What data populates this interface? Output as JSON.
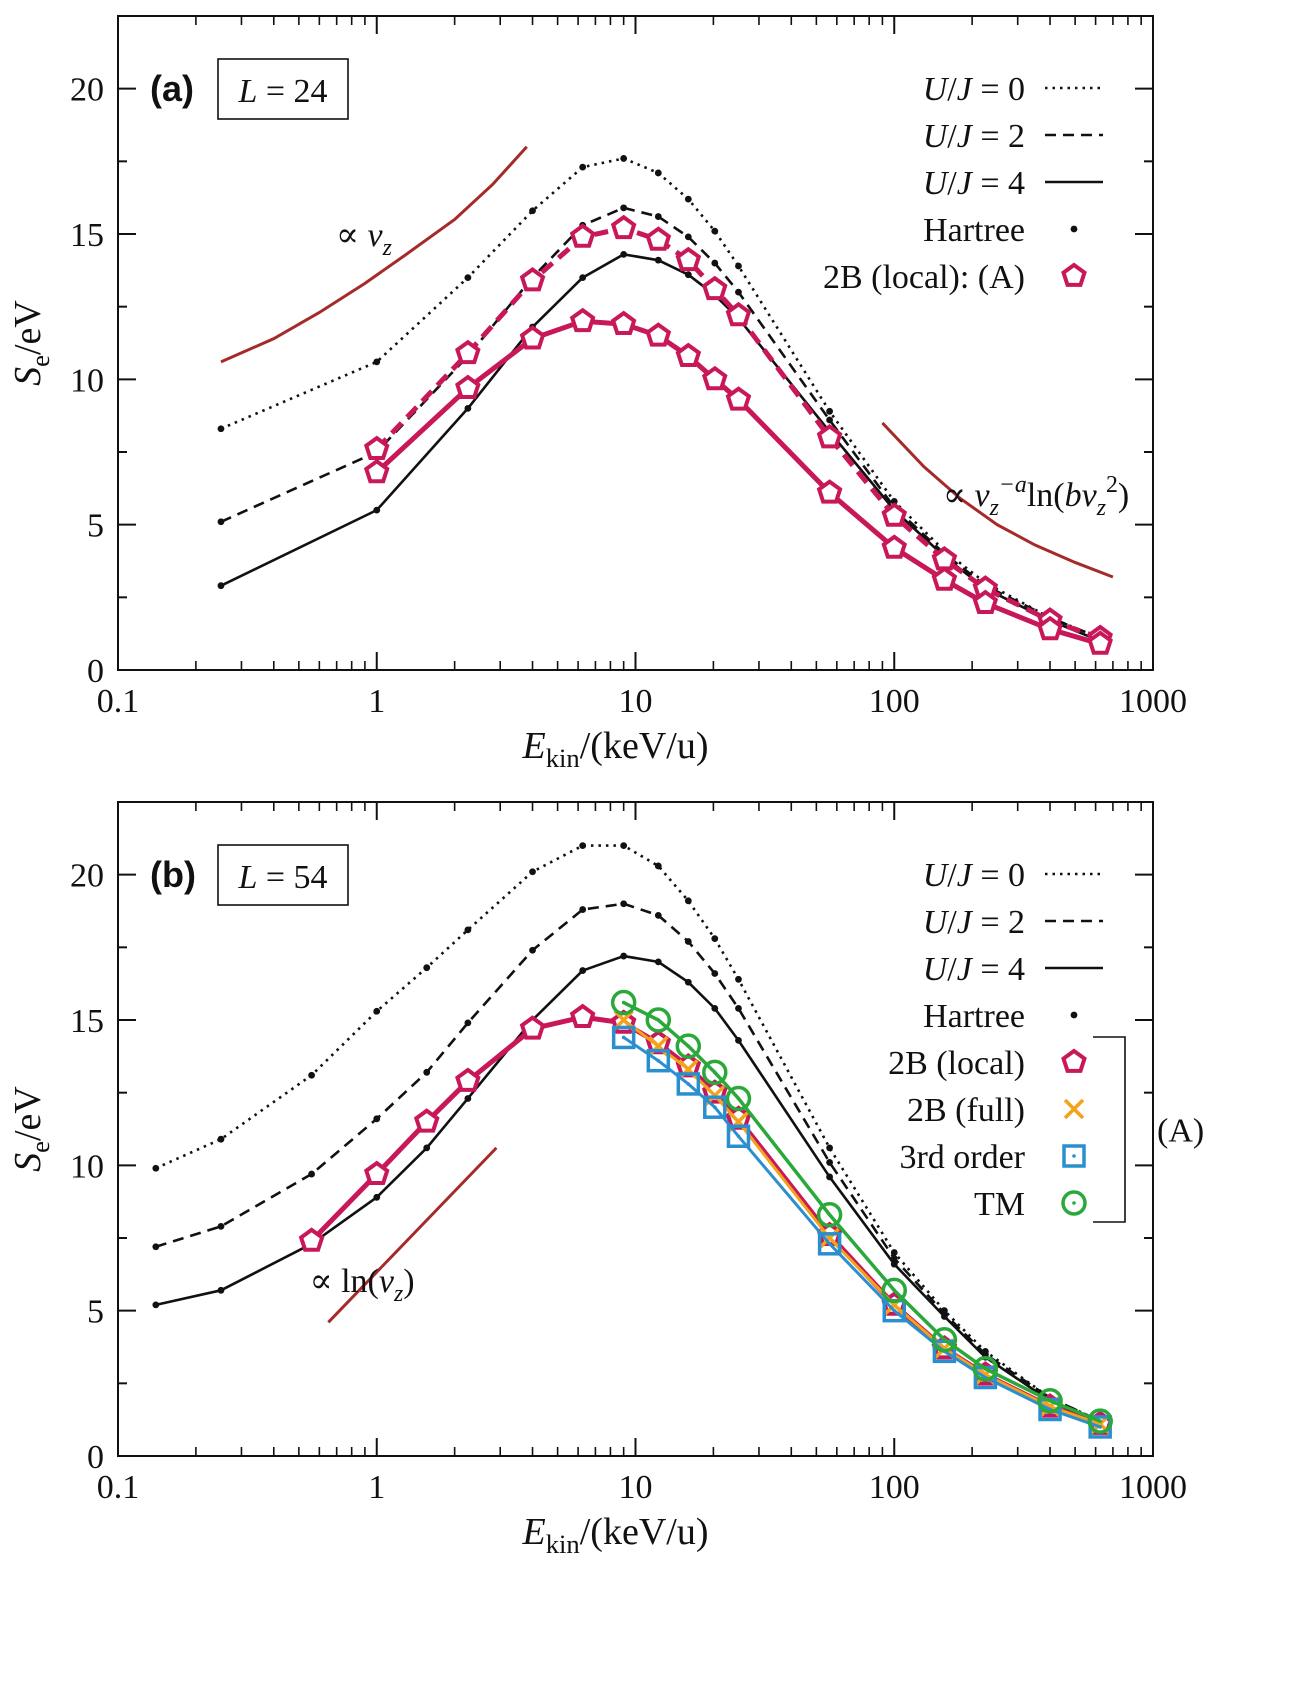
{
  "chart_data": [
    {
      "type": "line",
      "panel": "a",
      "panel_label": "(a)",
      "box_label": "L = 24",
      "xlabel": "E_kin/(keV/u)",
      "ylabel": "S_e/eV",
      "xscale": "log",
      "xlim": [
        0.1,
        1000
      ],
      "ylim": [
        0,
        22.5
      ],
      "xticks": [
        "0.1",
        "1",
        "10",
        "100",
        "1000"
      ],
      "yticks": [
        "0",
        "5",
        "10",
        "15",
        "20"
      ],
      "legend": [
        {
          "label": "U/J = 0",
          "style": "dotted"
        },
        {
          "label": "U/J = 2",
          "style": "dashed"
        },
        {
          "label": "U/J = 4",
          "style": "solid"
        },
        {
          "label": "Hartree",
          "style": "dot"
        },
        {
          "label": "2B (local): (A)",
          "style": "pentagon"
        }
      ],
      "annotations": {
        "low": "∝ v_z",
        "high": "∝ v_z^−a ln(b v_z^2)"
      },
      "series": [
        {
          "name": "Hartree U/J=0",
          "style": "dotted",
          "x": [
            0.25,
            1.0,
            2.25,
            4.0,
            6.25,
            9.0,
            12.25,
            16.0,
            20.25,
            25.0,
            56.25,
            100,
            156.25,
            225,
            400,
            625
          ],
          "y": [
            8.3,
            10.6,
            13.5,
            15.8,
            17.3,
            17.6,
            17.1,
            16.2,
            15.1,
            13.9,
            8.9,
            5.8,
            4.1,
            3.0,
            1.8,
            1.1
          ]
        },
        {
          "name": "Hartree U/J=2",
          "style": "dashed",
          "x": [
            0.25,
            1.0,
            2.25,
            4.0,
            6.25,
            9.0,
            12.25,
            16.0,
            20.25,
            25.0,
            56.25,
            100,
            156.25,
            225,
            400,
            625
          ],
          "y": [
            5.1,
            7.5,
            10.8,
            13.5,
            15.3,
            15.9,
            15.6,
            14.9,
            14.0,
            13.0,
            8.6,
            5.6,
            4.0,
            2.9,
            1.8,
            1.1
          ]
        },
        {
          "name": "Hartree U/J=4",
          "style": "solid",
          "x": [
            0.25,
            1.0,
            2.25,
            4.0,
            6.25,
            9.0,
            12.25,
            16.0,
            20.25,
            25.0,
            56.25,
            100,
            156.25,
            225,
            400,
            625
          ],
          "y": [
            2.9,
            5.5,
            9.0,
            11.8,
            13.5,
            14.3,
            14.1,
            13.6,
            12.9,
            12.1,
            8.2,
            5.5,
            3.9,
            2.8,
            1.7,
            1.0
          ]
        },
        {
          "name": "2B (local) U/J=2",
          "style": "dashed-pentagon",
          "x": [
            1.0,
            2.25,
            4.0,
            6.25,
            9.0,
            12.25,
            16.0,
            20.25,
            25.0,
            56.25,
            100,
            156.25,
            225,
            400,
            625
          ],
          "y": [
            7.6,
            10.9,
            13.4,
            14.9,
            15.2,
            14.8,
            14.1,
            13.1,
            12.2,
            8.0,
            5.3,
            3.8,
            2.8,
            1.7,
            1.1
          ]
        },
        {
          "name": "2B (local) U/J=4",
          "style": "solid-pentagon",
          "x": [
            1.0,
            2.25,
            4.0,
            6.25,
            9.0,
            12.25,
            16.0,
            20.25,
            25.0,
            56.25,
            100,
            156.25,
            225,
            400,
            625
          ],
          "y": [
            6.8,
            9.7,
            11.4,
            12.0,
            11.9,
            11.5,
            10.8,
            10.0,
            9.3,
            6.1,
            4.2,
            3.1,
            2.3,
            1.4,
            0.9
          ]
        }
      ],
      "guides": [
        {
          "name": "low-energy guide",
          "x": [
            0.25,
            0.4,
            0.6,
            0.9,
            1.3,
            2.0,
            2.8,
            3.8
          ],
          "y": [
            10.6,
            11.4,
            12.3,
            13.3,
            14.3,
            15.5,
            16.7,
            18.0
          ]
        },
        {
          "name": "high-energy guide",
          "x": [
            90,
            130,
            180,
            250,
            350,
            500,
            700
          ],
          "y": [
            8.5,
            7.0,
            5.9,
            5.0,
            4.3,
            3.7,
            3.2
          ]
        }
      ]
    },
    {
      "type": "line",
      "panel": "b",
      "panel_label": "(b)",
      "box_label": "L = 54",
      "xlabel": "E_kin/(keV/u)",
      "ylabel": "S_e/eV",
      "xscale": "log",
      "xlim": [
        0.1,
        1000
      ],
      "ylim": [
        0,
        22.5
      ],
      "xticks": [
        "0.1",
        "1",
        "10",
        "100",
        "1000"
      ],
      "yticks": [
        "0",
        "5",
        "10",
        "15",
        "20"
      ],
      "legend": [
        {
          "label": "U/J = 0",
          "style": "dotted"
        },
        {
          "label": "U/J = 2",
          "style": "dashed"
        },
        {
          "label": "U/J = 4",
          "style": "solid"
        },
        {
          "label": "Hartree",
          "style": "dot"
        },
        {
          "label": "2B (local)",
          "style": "pentagon"
        },
        {
          "label": "2B (full)",
          "style": "cross"
        },
        {
          "label": "3rd order",
          "style": "square"
        },
        {
          "label": "TM",
          "style": "circle"
        }
      ],
      "bracket_label": "(A)",
      "annotations": {
        "low": "∝ ln(v_z)"
      },
      "series": [
        {
          "name": "Hartree U/J=0",
          "style": "dotted",
          "x": [
            0.14,
            0.25,
            0.56,
            1.0,
            1.56,
            2.25,
            4.0,
            6.25,
            9.0,
            12.25,
            16.0,
            20.25,
            25.0,
            56.25,
            100,
            156.25,
            225,
            400,
            625
          ],
          "y": [
            9.9,
            10.9,
            13.1,
            15.3,
            16.8,
            18.1,
            20.1,
            21.0,
            21.0,
            20.3,
            19.1,
            17.8,
            16.4,
            10.6,
            7.0,
            5.0,
            3.6,
            2.0,
            1.2
          ]
        },
        {
          "name": "Hartree U/J=2",
          "style": "dashed",
          "x": [
            0.14,
            0.25,
            0.56,
            1.0,
            1.56,
            2.25,
            4.0,
            6.25,
            9.0,
            12.25,
            16.0,
            20.25,
            25.0,
            56.25,
            100,
            156.25,
            225,
            400,
            625
          ],
          "y": [
            7.2,
            7.9,
            9.7,
            11.6,
            13.2,
            14.9,
            17.4,
            18.8,
            19.0,
            18.6,
            17.7,
            16.6,
            15.4,
            10.1,
            6.8,
            4.9,
            3.5,
            2.0,
            1.2
          ]
        },
        {
          "name": "Hartree U/J=4",
          "style": "solid",
          "x": [
            0.14,
            0.25,
            0.56,
            1.0,
            1.56,
            2.25,
            4.0,
            6.25,
            9.0,
            12.25,
            16.0,
            20.25,
            25.0,
            56.25,
            100,
            156.25,
            225,
            400,
            625
          ],
          "y": [
            5.2,
            5.7,
            7.3,
            8.9,
            10.6,
            12.3,
            15.0,
            16.7,
            17.2,
            17.0,
            16.3,
            15.4,
            14.3,
            9.6,
            6.6,
            4.8,
            3.4,
            1.9,
            1.1
          ]
        },
        {
          "name": "2B (local)",
          "style": "pentagon",
          "x": [
            0.56,
            1.0,
            1.56,
            2.25,
            4.0,
            6.25,
            9.0,
            12.25,
            16.0,
            20.25,
            25.0,
            56.25,
            100,
            156.25,
            225,
            400,
            625
          ],
          "y": [
            7.4,
            9.7,
            11.5,
            12.9,
            14.7,
            15.1,
            14.9,
            14.2,
            13.4,
            12.5,
            11.6,
            7.6,
            5.2,
            3.7,
            2.8,
            1.7,
            1.1
          ]
        },
        {
          "name": "2B (full)",
          "style": "cross",
          "x": [
            9.0,
            12.25,
            16.0,
            20.25,
            25.0,
            56.25,
            100,
            156.25,
            225,
            400,
            625
          ],
          "y": [
            15.0,
            14.1,
            13.3,
            12.4,
            11.5,
            7.5,
            5.2,
            3.7,
            2.8,
            1.7,
            1.1
          ]
        },
        {
          "name": "3rd order",
          "style": "square",
          "x": [
            9.0,
            12.25,
            16.0,
            20.25,
            25.0,
            56.25,
            100,
            156.25,
            225,
            400,
            625
          ],
          "y": [
            14.4,
            13.6,
            12.8,
            12.0,
            11.0,
            7.3,
            5.0,
            3.6,
            2.7,
            1.6,
            1.0
          ]
        },
        {
          "name": "TM",
          "style": "circle",
          "x": [
            9.0,
            12.25,
            16.0,
            20.25,
            25.0,
            56.25,
            100,
            156.25,
            225,
            400,
            625
          ],
          "y": [
            15.6,
            15.0,
            14.1,
            13.2,
            12.3,
            8.3,
            5.7,
            4.0,
            3.0,
            1.9,
            1.2
          ]
        }
      ],
      "guides": [
        {
          "name": "log guide",
          "x": [
            0.65,
            2.9
          ],
          "y": [
            4.6,
            10.6
          ]
        }
      ]
    }
  ],
  "colors": {
    "axis": "#111111",
    "series_black": "#111111",
    "pentagon": "#c8185a",
    "cross": "#f2a31b",
    "square": "#2a8fd0",
    "circle": "#2aa83a",
    "guide": "#a52a2a"
  }
}
